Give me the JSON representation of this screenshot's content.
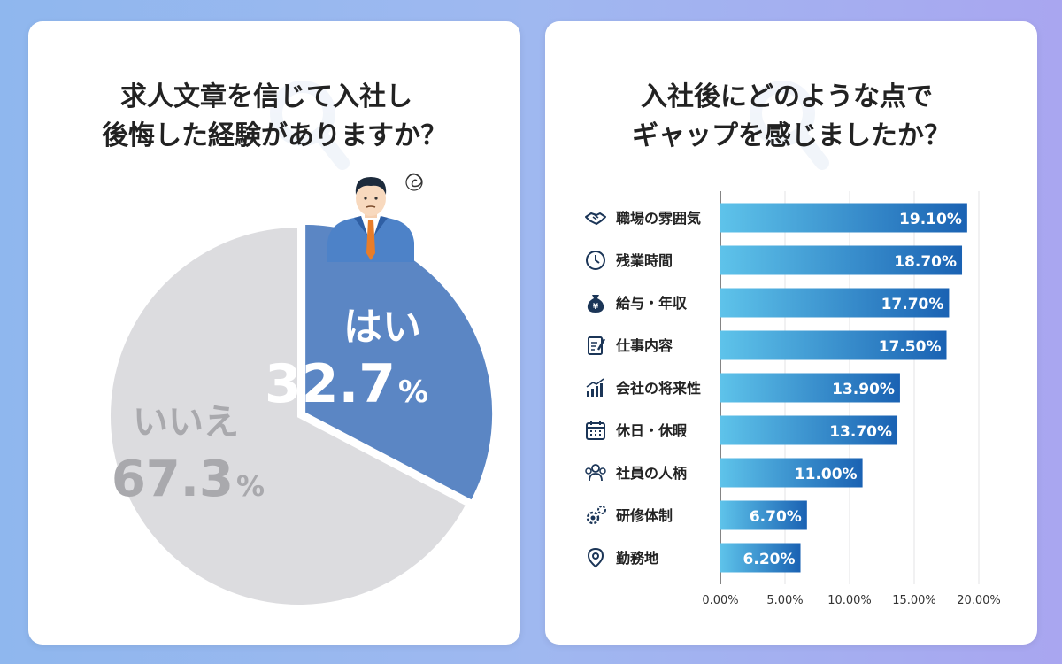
{
  "left": {
    "title_line1": "求人文章を信じて入社し",
    "title_line2": "後悔した経験がありますか？"
  },
  "right": {
    "title_line1": "入社後にどのような点で",
    "title_line2": "ギャップを感じましたか？"
  },
  "colors": {
    "yes_slice": "#5b86c4",
    "no_slice": "#dcdcdf",
    "bar_dark": "#1a62b3",
    "bar_light": "#5ec3ea",
    "icon": "#1b3557"
  },
  "chart_data": [
    {
      "type": "pie",
      "slices": [
        {
          "label": "はい",
          "value": 32.7,
          "display": "32.7",
          "unit": "%"
        },
        {
          "label": "いいえ",
          "value": 67.3,
          "display": "67.3",
          "unit": "%"
        }
      ]
    },
    {
      "type": "bar",
      "orientation": "horizontal",
      "categories": [
        "職場の雰囲気",
        "残業時間",
        "給与・年収",
        "仕事内容",
        "会社の将来性",
        "休日・休暇",
        "社員の人柄",
        "研修体制",
        "勤務地"
      ],
      "icons": [
        "handshake-icon",
        "clock-icon",
        "money-bag-icon",
        "clipboard-icon",
        "growth-chart-icon",
        "calendar-icon",
        "people-icon",
        "gears-icon",
        "location-pin-icon"
      ],
      "values": [
        19.1,
        18.7,
        17.7,
        17.5,
        13.9,
        13.7,
        11.0,
        6.7,
        6.2
      ],
      "value_labels": [
        "19.10%",
        "18.70%",
        "17.70%",
        "17.50%",
        "13.90%",
        "13.70%",
        "11.00%",
        "6.70%",
        "6.20%"
      ],
      "xlim": [
        0,
        20
      ],
      "xticks": [
        "0.00%",
        "5.00%",
        "10.00%",
        "15.00%",
        "20.00%"
      ],
      "grid": true
    }
  ]
}
